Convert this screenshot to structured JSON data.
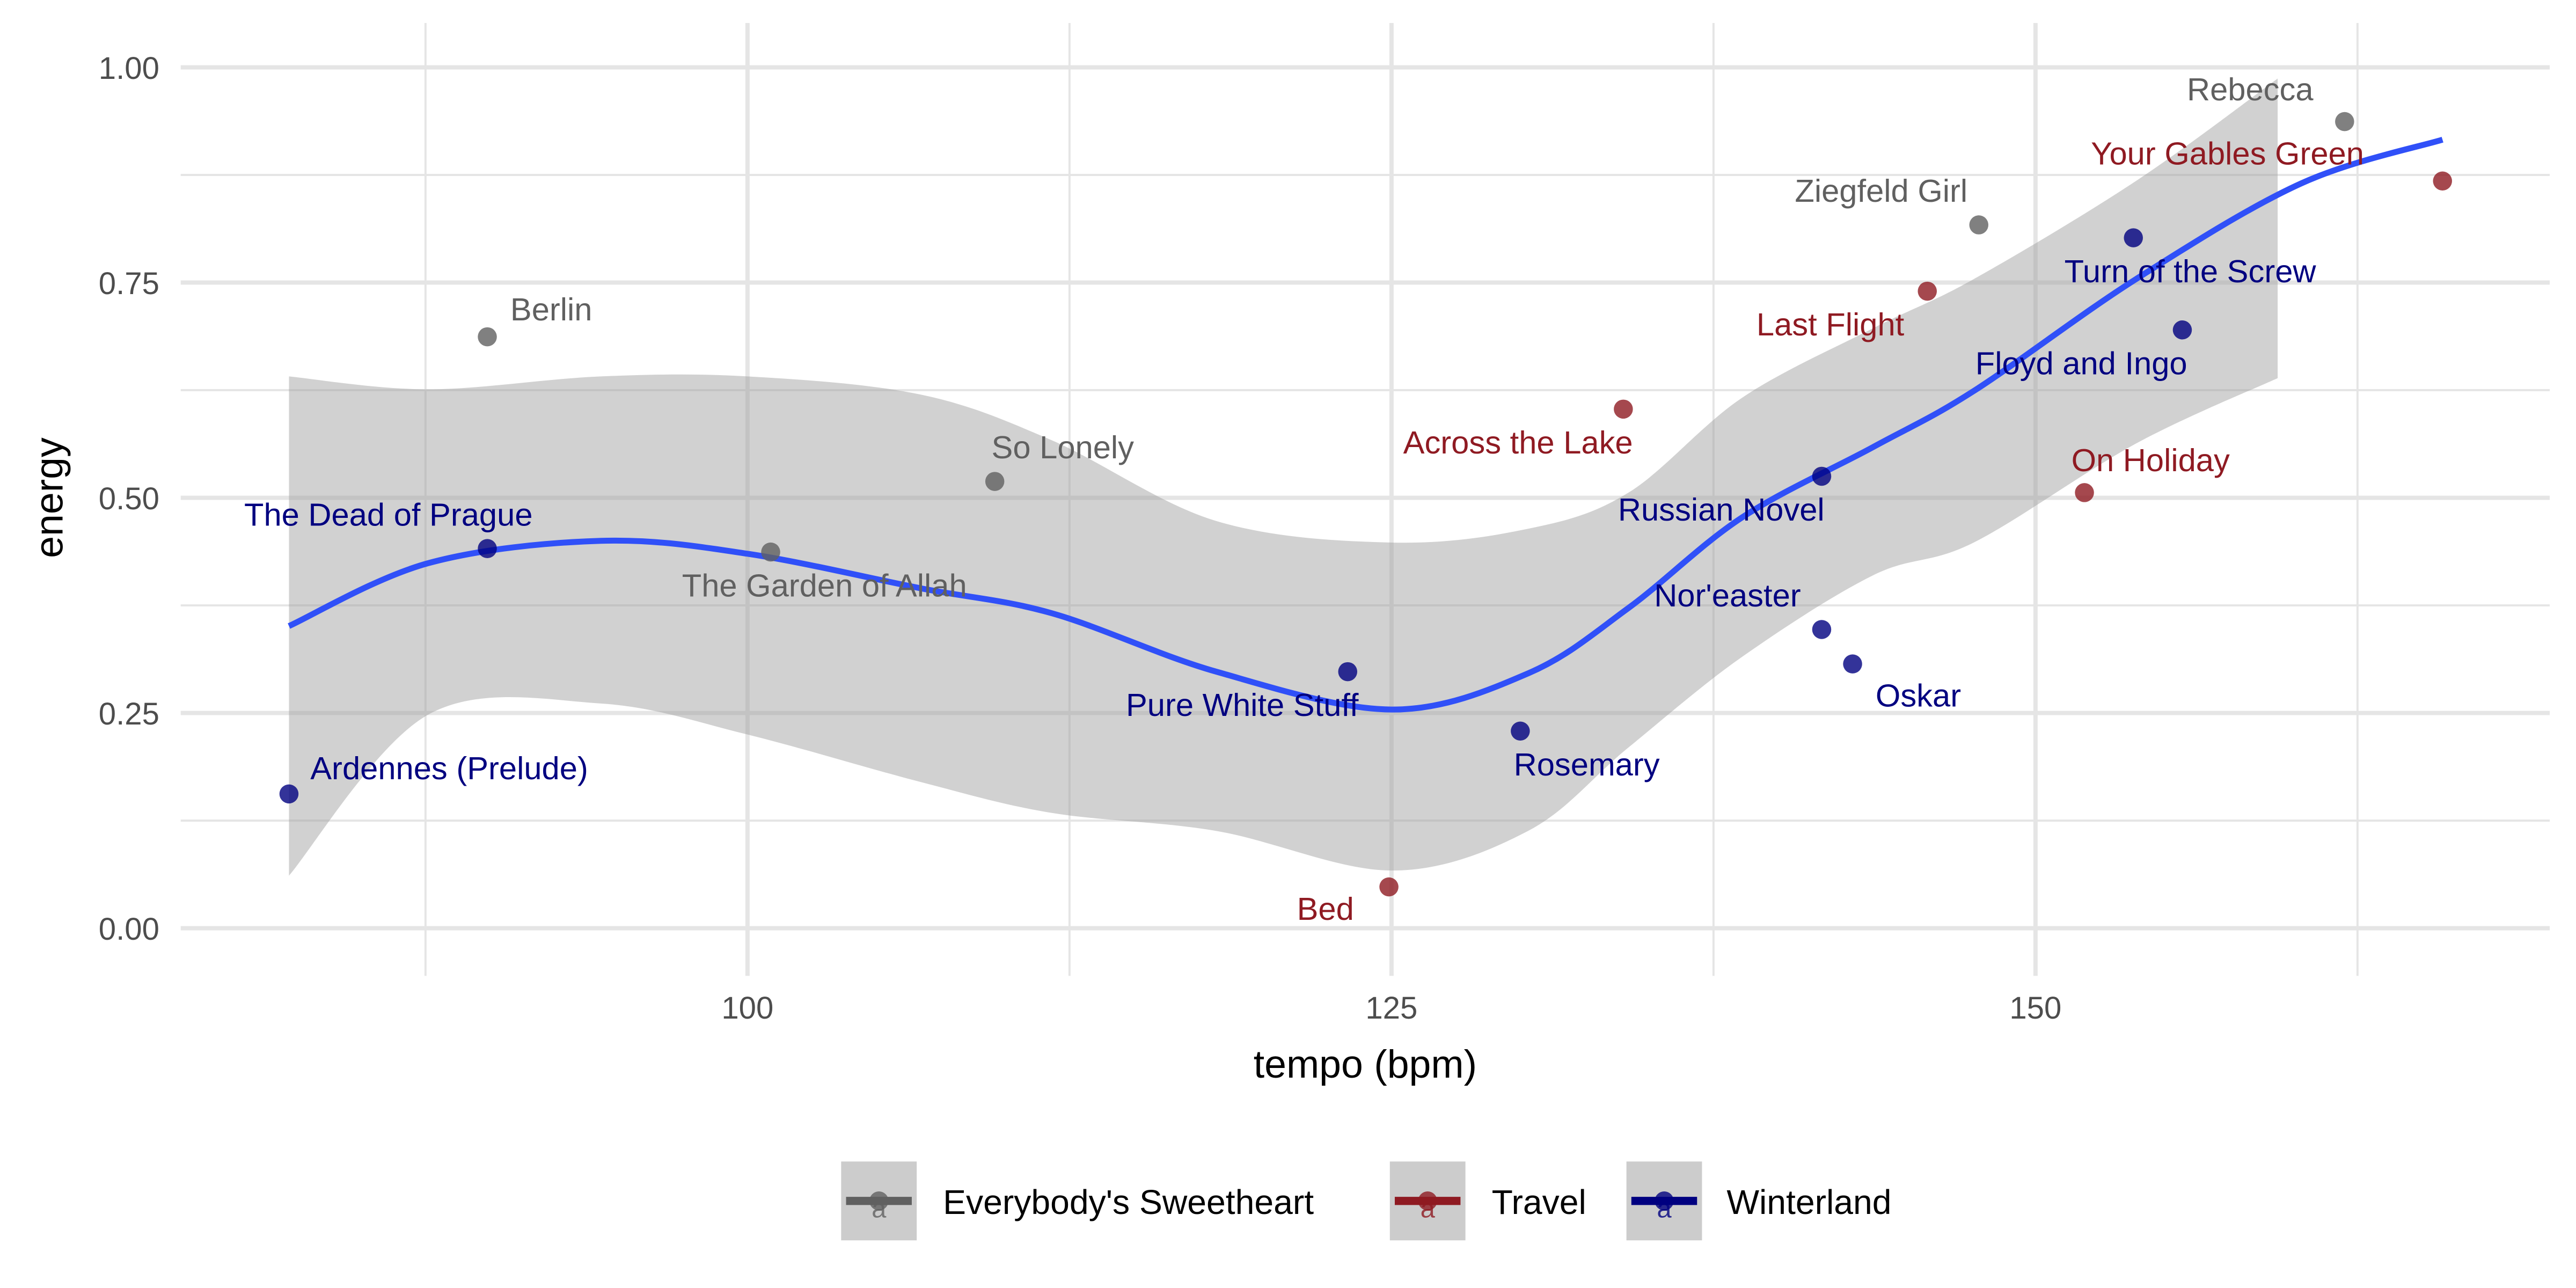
{
  "chart_data": {
    "type": "scatter",
    "title": "",
    "xlabel": "tempo (bpm)",
    "ylabel": "energy",
    "xlim": [
      77,
      168
    ],
    "ylim": [
      -0.04,
      1.05
    ],
    "x_ticks": [
      100,
      125,
      150
    ],
    "x_tick_labels": [
      "100",
      "125",
      "150"
    ],
    "y_ticks": [
      0.0,
      0.25,
      0.5,
      0.75,
      1.0
    ],
    "y_tick_labels": [
      "0.00",
      "0.25",
      "0.50",
      "0.75",
      "1.00"
    ],
    "grid": true,
    "legend_position": "bottom",
    "colors": {
      "Everybody's Sweetheart": "#606060",
      "Travel": "#8f1a22",
      "Winterland": "#000080",
      "smooth": "#3050f8",
      "ribbon": "#cccccc",
      "grid": "#e5e5e5"
    },
    "series": [
      {
        "name": "Everybody's Sweetheart",
        "points": [
          {
            "label": "Berlin",
            "x": 89.9,
            "y": 0.687
          },
          {
            "label": "The Garden of Allah",
            "x": 100.9,
            "y": 0.437
          },
          {
            "label": "So Lonely",
            "x": 109.6,
            "y": 0.519
          },
          {
            "label": "Ziegfeld Girl",
            "x": 147.8,
            "y": 0.817
          },
          {
            "label": "Rebecca",
            "x": 162.0,
            "y": 0.937
          }
        ]
      },
      {
        "name": "Travel",
        "points": [
          {
            "label": "Bed",
            "x": 124.9,
            "y": 0.048
          },
          {
            "label": "Across the Lake",
            "x": 134.0,
            "y": 0.603
          },
          {
            "label": "Last Flight",
            "x": 145.8,
            "y": 0.74
          },
          {
            "label": "On Holiday",
            "x": 151.9,
            "y": 0.506
          },
          {
            "label": "Your Gables Green",
            "x": 165.8,
            "y": 0.868
          }
        ]
      },
      {
        "name": "Winterland",
        "points": [
          {
            "label": "Ardennes (Prelude)",
            "x": 82.2,
            "y": 0.156
          },
          {
            "label": "The Dead of Prague",
            "x": 89.9,
            "y": 0.441
          },
          {
            "label": "Pure White Stuff",
            "x": 123.3,
            "y": 0.298
          },
          {
            "label": "Rosemary",
            "x": 130.0,
            "y": 0.229
          },
          {
            "label": "Russian Novel",
            "x": 141.7,
            "y": 0.525
          },
          {
            "label": "Nor'easter",
            "x": 141.7,
            "y": 0.347
          },
          {
            "label": "Oskar",
            "x": 142.9,
            "y": 0.307
          },
          {
            "label": "Turn of the Screw",
            "x": 153.8,
            "y": 0.802
          },
          {
            "label": "Floyd and Ingo",
            "x": 155.7,
            "y": 0.695
          }
        ]
      }
    ],
    "smooth": {
      "method": "loess",
      "x": [
        82.2,
        87.6,
        94.3,
        100.0,
        106.7,
        111.8,
        118.2,
        125.0,
        130.3,
        134.2,
        138.6,
        143.7,
        147.6,
        153.9,
        160.3,
        165.8
      ],
      "y": [
        0.351,
        0.424,
        0.45,
        0.435,
        0.395,
        0.366,
        0.298,
        0.254,
        0.296,
        0.372,
        0.477,
        0.559,
        0.624,
        0.754,
        0.865,
        0.916
      ]
    },
    "ribbon": {
      "x": [
        82.2,
        87.6,
        94.3,
        100.0,
        106.7,
        111.8,
        118.2,
        125.0,
        130.3,
        134.2,
        138.6,
        143.7,
        147.6,
        153.9,
        159.4
      ],
      "upper": [
        0.641,
        0.626,
        0.641,
        0.641,
        0.62,
        0.567,
        0.473,
        0.448,
        0.464,
        0.506,
        0.616,
        0.697,
        0.754,
        0.868,
        0.987
      ],
      "lower": [
        0.061,
        0.248,
        0.261,
        0.225,
        0.17,
        0.134,
        0.113,
        0.067,
        0.113,
        0.21,
        0.315,
        0.41,
        0.448,
        0.563,
        0.639
      ]
    },
    "legend": {
      "entries": [
        "Everybody's Sweetheart",
        "Travel",
        "Winterland"
      ],
      "key_glyph": "a"
    }
  }
}
